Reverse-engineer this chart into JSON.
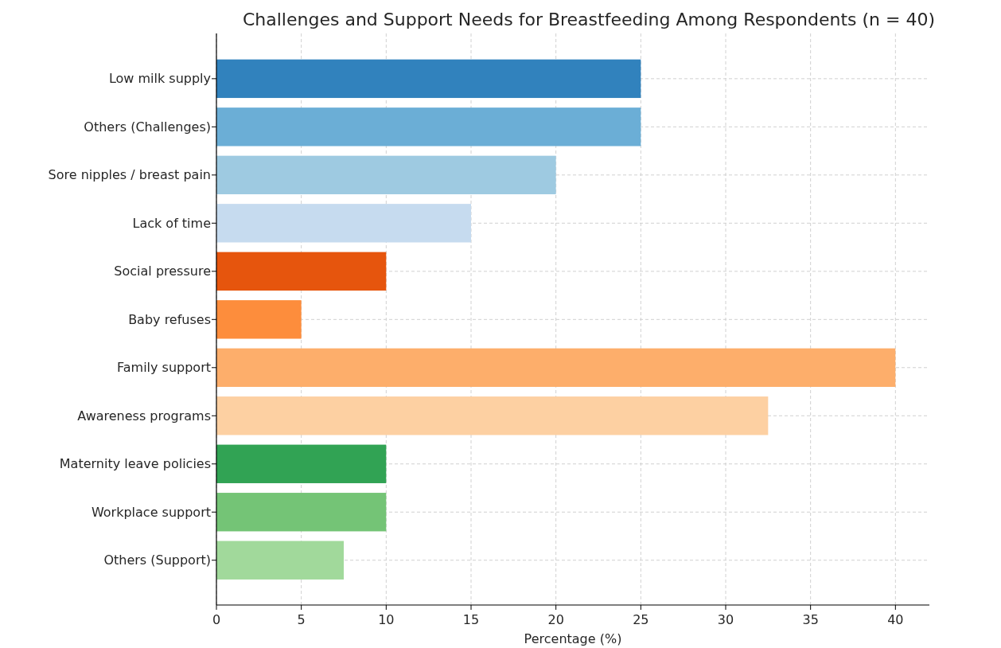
{
  "chart_data": {
    "type": "bar",
    "orientation": "horizontal",
    "title": "Challenges and Support Needs for Breastfeeding Among Respondents (n = 40)",
    "xlabel": "Percentage (%)",
    "categories": [
      "Low milk supply",
      "Others (Challenges)",
      "Sore nipples / breast pain",
      "Lack of time",
      "Social pressure",
      "Baby refuses",
      "Family support",
      "Awareness programs",
      "Maternity leave policies",
      "Workplace support",
      "Others (Support)"
    ],
    "values": [
      25,
      25,
      20,
      15,
      10,
      5,
      40,
      32.5,
      10,
      10,
      7.5
    ],
    "colors": [
      "#3182bd",
      "#6baed6",
      "#9ecae1",
      "#c6dbef",
      "#e6550d",
      "#fd8d3c",
      "#fdae6b",
      "#fdd0a2",
      "#31a354",
      "#74c476",
      "#a1d99b"
    ],
    "xlim": [
      0,
      42
    ],
    "xticks": [
      0,
      5,
      10,
      15,
      20,
      25,
      30,
      35,
      40
    ],
    "grid": true
  }
}
